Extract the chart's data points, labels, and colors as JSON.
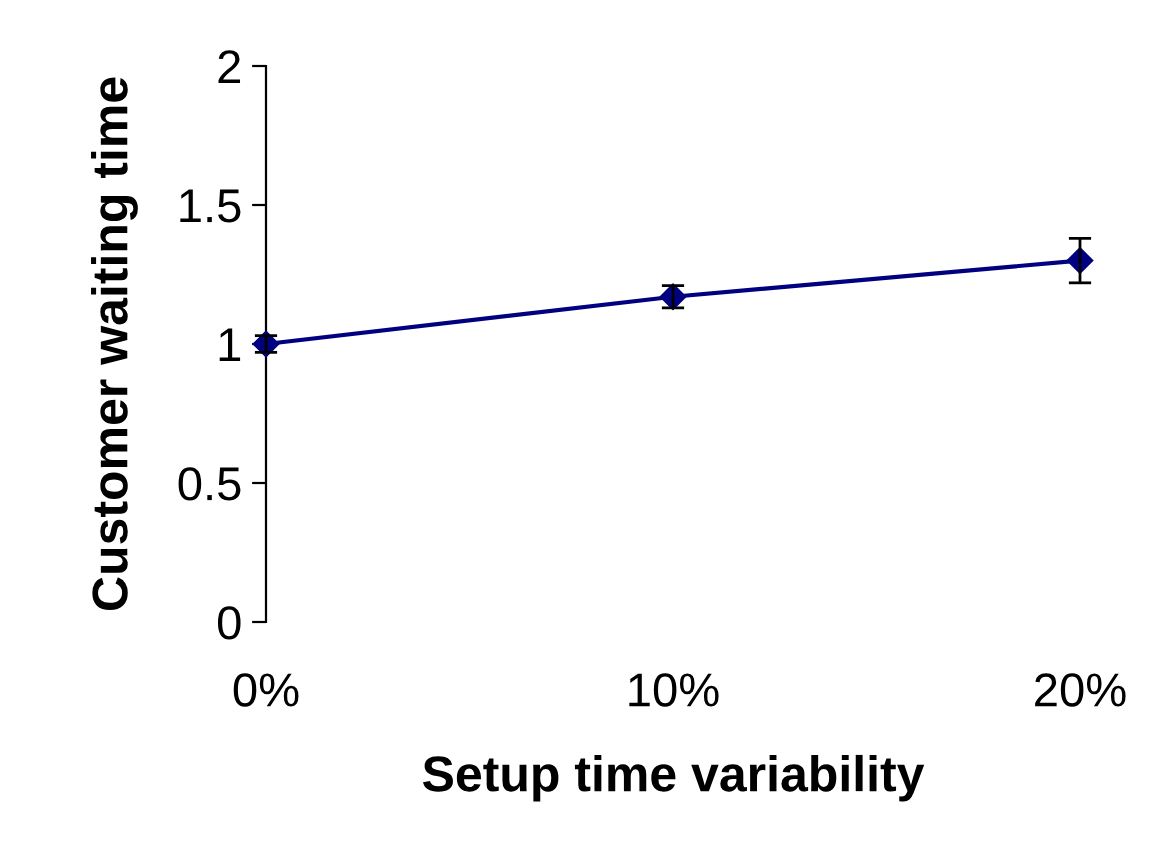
{
  "chart_data": {
    "type": "line",
    "xlabel": "Setup time variability",
    "ylabel": "Customer waiting time",
    "categories": [
      "0%",
      "10%",
      "20%"
    ],
    "series": [
      {
        "color": "#000080",
        "values": [
          1.0,
          1.17,
          1.3
        ],
        "errors": [
          0.03,
          0.04,
          0.08
        ]
      }
    ],
    "ylim": [
      0,
      2
    ],
    "yticks": [
      0,
      0.5,
      1,
      1.5,
      2
    ],
    "marker": "diamond",
    "line_style": "solid",
    "grid": false,
    "legend": false
  }
}
